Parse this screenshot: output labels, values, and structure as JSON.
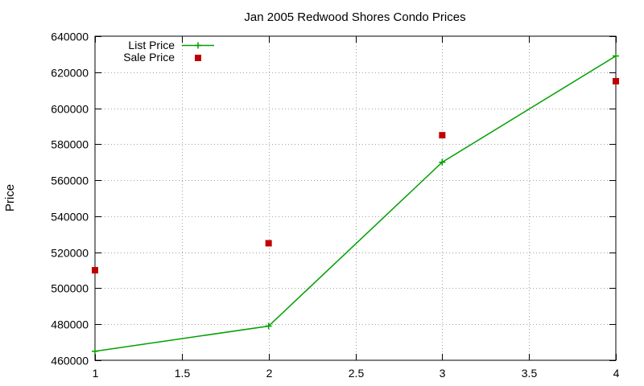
{
  "chart_data": {
    "type": "line",
    "title": "Jan 2005 Redwood Shores Condo Prices",
    "xlabel": "",
    "ylabel": "Price",
    "xlim": [
      1,
      4
    ],
    "ylim": [
      460000,
      640000
    ],
    "xticks": [
      1,
      1.5,
      2,
      2.5,
      3,
      3.5,
      4
    ],
    "xtick_labels": [
      "1",
      "1.5",
      "2",
      "2.5",
      "3",
      "3.5",
      "4"
    ],
    "yticks": [
      460000,
      480000,
      500000,
      520000,
      540000,
      560000,
      580000,
      600000,
      620000,
      640000
    ],
    "ytick_labels": [
      "460000",
      "480000",
      "500000",
      "520000",
      "540000",
      "560000",
      "580000",
      "600000",
      "620000",
      "640000"
    ],
    "grid": true,
    "legend_position": "top-left",
    "series": [
      {
        "name": "List Price",
        "style": "line-with-plus-markers",
        "color": "#00a000",
        "x": [
          1,
          2,
          3,
          4
        ],
        "y": [
          465000,
          479000,
          570000,
          629000
        ]
      },
      {
        "name": "Sale Price",
        "style": "square-markers",
        "color": "#c00000",
        "x": [
          1,
          2,
          3,
          4
        ],
        "y": [
          510000,
          525000,
          585000,
          615000
        ]
      }
    ]
  }
}
